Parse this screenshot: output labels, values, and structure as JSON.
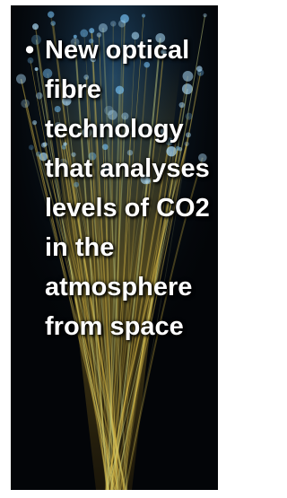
{
  "bullets": [
    "New optical fibre technology that analyses levels of CO2 in the atmosphere from space"
  ]
}
